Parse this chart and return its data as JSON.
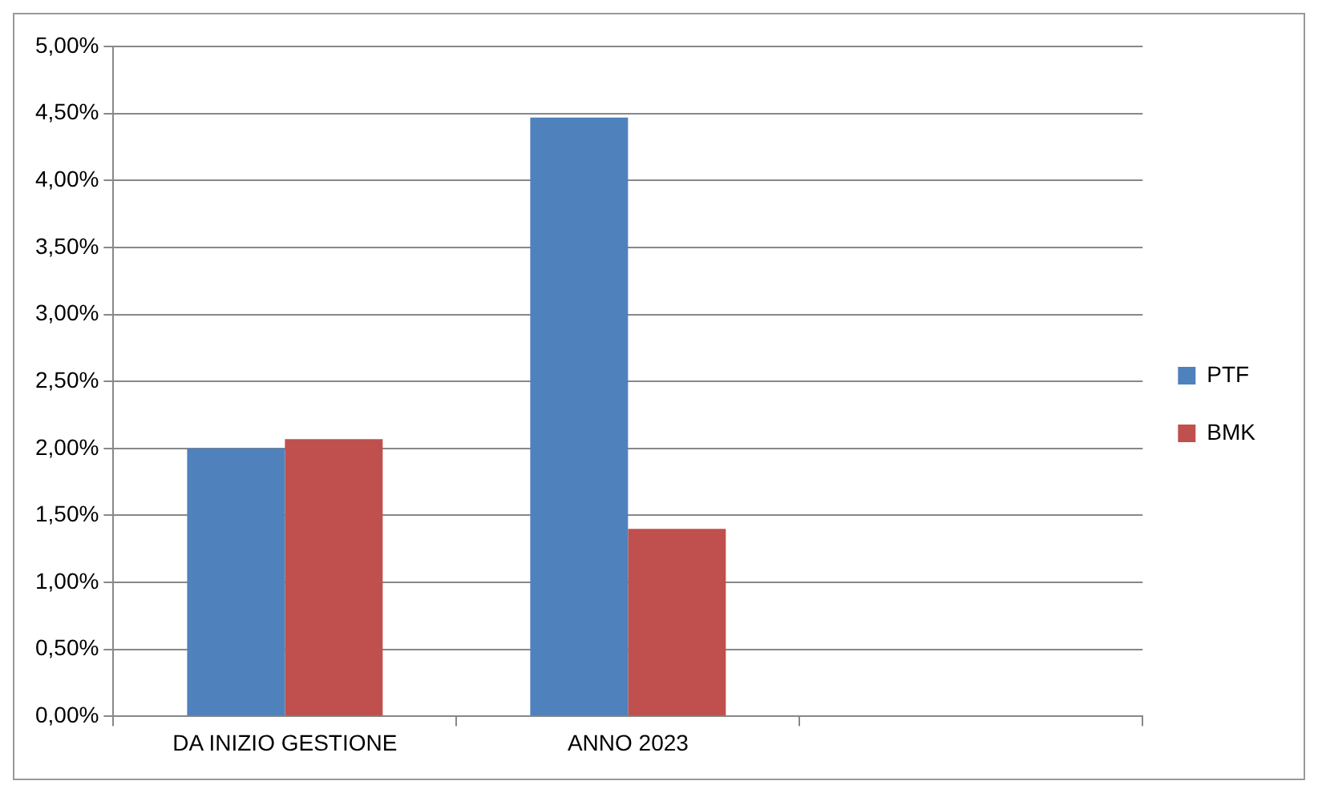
{
  "chart_data": {
    "type": "bar",
    "categories": [
      "DA INIZIO GESTIONE",
      "ANNO 2023",
      null
    ],
    "series": [
      {
        "name": "PTF",
        "color": "#4f81bd",
        "values": [
          2.0,
          4.47,
          null
        ]
      },
      {
        "name": "BMK",
        "color": "#c0504d",
        "values": [
          2.07,
          1.4,
          null
        ]
      }
    ],
    "ylim": [
      0,
      5
    ],
    "yticks": [
      {
        "value": 0,
        "label": "0,00%"
      },
      {
        "value": 0.5,
        "label": "0,50%"
      },
      {
        "value": 1,
        "label": "1,00%"
      },
      {
        "value": 1.5,
        "label": "1,50%"
      },
      {
        "value": 2,
        "label": "2,00%"
      },
      {
        "value": 2.5,
        "label": "2,50%"
      },
      {
        "value": 3,
        "label": "3,00%"
      },
      {
        "value": 3.5,
        "label": "3,50%"
      },
      {
        "value": 4,
        "label": "4,00%"
      },
      {
        "value": 4.5,
        "label": "4,50%"
      },
      {
        "value": 5,
        "label": "5,00%"
      }
    ],
    "grid": "y",
    "legend": "right"
  }
}
